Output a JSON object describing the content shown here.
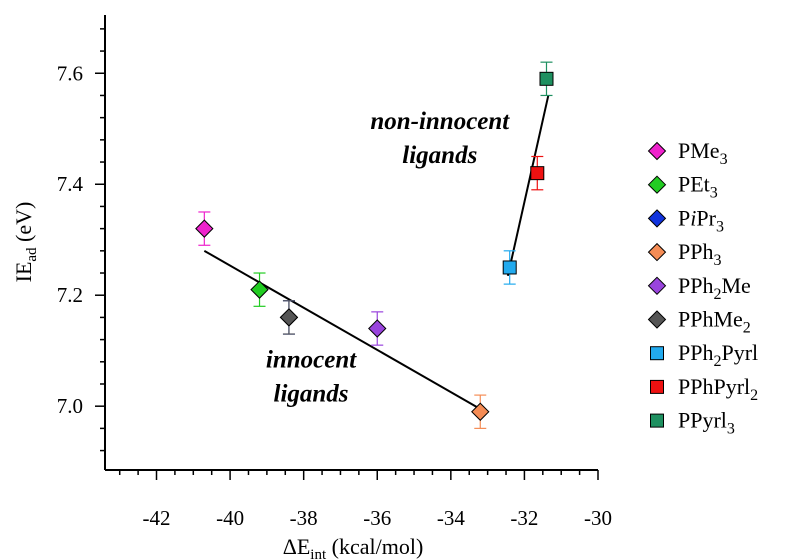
{
  "chart_data": {
    "type": "scatter",
    "title": "",
    "xlabel": {
      "main": "ΔE",
      "sub": "int",
      "rest": " (kcal/mol)"
    },
    "ylabel": {
      "main": "IE",
      "sub": "ad",
      "rest": " (eV)"
    },
    "xlim": [
      -43.4,
      -30
    ],
    "ylim": [
      6.885,
      7.705
    ],
    "x_ticks": [
      -42,
      -40,
      -38,
      -36,
      -34,
      -32,
      -30
    ],
    "x_tick_labels": [
      "-42",
      "-40",
      "-38",
      "-36",
      "-34",
      "-32",
      "-30"
    ],
    "y_ticks": [
      7.0,
      7.2,
      7.4,
      7.6
    ],
    "y_tick_labels": [
      "7.0",
      "7.2",
      "7.4",
      "7.6"
    ],
    "grid": false,
    "legend_position": "right",
    "series": [
      {
        "name": {
          "parts": [
            [
              "PMe",
              ""
            ],
            [
              "3",
              "sub"
            ]
          ]
        },
        "marker": "diamond",
        "color": "#ee22cc",
        "x": -40.7,
        "y": 7.32,
        "err": 0.03
      },
      {
        "name": {
          "parts": [
            [
              "PEt",
              ""
            ],
            [
              "3",
              "sub"
            ]
          ]
        },
        "marker": "diamond",
        "color": "#22cc22",
        "x": -39.2,
        "y": 7.21,
        "err": 0.03
      },
      {
        "name": {
          "parts": [
            [
              "P",
              ""
            ],
            [
              "i",
              "it"
            ],
            [
              "Pr",
              ""
            ],
            [
              "3",
              "sub"
            ]
          ]
        },
        "marker": "diamond",
        "color": "#1133dd",
        "x": -38.4,
        "y": 7.16,
        "err": 0.03
      },
      {
        "name": {
          "parts": [
            [
              "PPh",
              ""
            ],
            [
              "3",
              "sub"
            ]
          ]
        },
        "marker": "diamond",
        "color": "#f58c55",
        "x": -33.2,
        "y": 6.99,
        "err": 0.03
      },
      {
        "name": {
          "parts": [
            [
              "PPh",
              ""
            ],
            [
              "2",
              "sub"
            ],
            [
              "Me",
              ""
            ]
          ]
        },
        "marker": "diamond",
        "color": "#9944dd",
        "x": -36.0,
        "y": 7.14,
        "err": 0.03
      },
      {
        "name": {
          "parts": [
            [
              "PPhMe",
              ""
            ],
            [
              "2",
              "sub"
            ]
          ]
        },
        "marker": "diamond",
        "color": "#555555",
        "x": -38.4,
        "y": 7.16,
        "err": 0.03
      },
      {
        "name": {
          "parts": [
            [
              "PPh",
              ""
            ],
            [
              "2",
              "sub"
            ],
            [
              "Pyrl",
              ""
            ]
          ]
        },
        "marker": "square",
        "color": "#22aaee",
        "x": -32.4,
        "y": 7.25,
        "err": 0.03
      },
      {
        "name": {
          "parts": [
            [
              "PPhPyrl",
              ""
            ],
            [
              "2",
              "sub"
            ]
          ]
        },
        "marker": "square",
        "color": "#ee1111",
        "x": -31.65,
        "y": 7.42,
        "err": 0.03
      },
      {
        "name": {
          "parts": [
            [
              "PPyrl",
              ""
            ],
            [
              "3",
              "sub"
            ]
          ]
        },
        "marker": "square",
        "color": "#1e9060",
        "x": -31.4,
        "y": 7.59,
        "err": 0.03
      }
    ],
    "fit_lines": [
      {
        "x": [
          -40.7,
          -33.2
        ],
        "y": [
          7.28,
          6.995
        ]
      },
      {
        "x": [
          -32.45,
          -31.35
        ],
        "y": [
          7.235,
          7.56
        ]
      }
    ],
    "annotations": [
      {
        "lines": [
          "non-innocent",
          "ligands"
        ],
        "anchor_x": -34.3,
        "anchor_y": 7.5
      },
      {
        "lines": [
          "innocent",
          "ligands"
        ],
        "anchor_x": -37.8,
        "anchor_y": 7.07
      }
    ]
  }
}
